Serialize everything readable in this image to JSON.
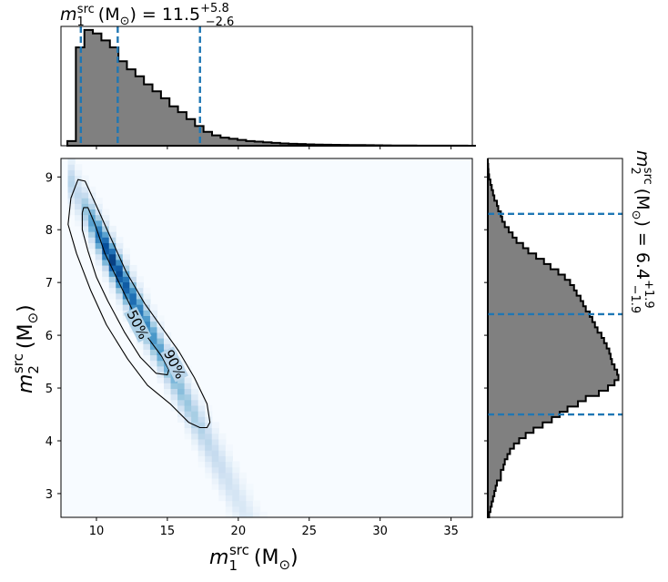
{
  "chart_data": {
    "type": "corner-plot",
    "top_title": {
      "base": "m",
      "sub": "1",
      "sup": "src",
      "unit": "(M",
      "unit_sub": "⊙",
      "unit_end": ")",
      "eq": "=",
      "value": "11.5",
      "plus": "+5.8",
      "minus": "−2.6"
    },
    "right_title": {
      "base": "m",
      "sub": "2",
      "sup": "src",
      "unit": "(M",
      "unit_sub": "⊙",
      "unit_end": ")",
      "eq": "=",
      "value": "6.4",
      "plus": "+1.9",
      "minus": "−1.9"
    },
    "xlabel": {
      "base": "m",
      "sub": "1",
      "sup": "src",
      "unit": "(M",
      "unit_sub": "⊙",
      "unit_end": ")"
    },
    "ylabel": {
      "base": "m",
      "sub": "2",
      "sup": "src",
      "unit": "(M",
      "unit_sub": "⊙",
      "unit_end": ")"
    },
    "xlim": [
      7.5,
      36.5
    ],
    "ylim": [
      2.55,
      9.35
    ],
    "xticks": [
      "10",
      "15",
      "20",
      "25",
      "30",
      "35"
    ],
    "xtick_values": [
      10,
      15,
      20,
      25,
      30,
      35
    ],
    "yticks": [
      "3",
      "4",
      "5",
      "6",
      "7",
      "8",
      "9"
    ],
    "ytick_values": [
      3,
      4,
      5,
      6,
      7,
      8,
      9
    ],
    "colormap": "Blues",
    "hist_fill": "#808080",
    "quantile_color": "#1f77b4",
    "m1_quantiles": [
      8.9,
      11.5,
      17.3
    ],
    "m2_quantiles": [
      4.5,
      6.4,
      8.3
    ],
    "m1_hist": {
      "edges_start": 7.95,
      "bin_width": 0.6,
      "counts": [
        0.04,
        0.85,
        1.0,
        0.97,
        0.91,
        0.85,
        0.73,
        0.66,
        0.6,
        0.53,
        0.47,
        0.41,
        0.34,
        0.29,
        0.23,
        0.17,
        0.12,
        0.09,
        0.07,
        0.06,
        0.05,
        0.04,
        0.035,
        0.03,
        0.025,
        0.02,
        0.017,
        0.015,
        0.012,
        0.01,
        0.009,
        0.008,
        0.007,
        0.006,
        0.006,
        0.005,
        0.004,
        0.003,
        0.002,
        0.002,
        0.0015,
        0.001,
        0.001,
        0.001,
        0.0005,
        0.0005,
        0.0005,
        0.0
      ]
    },
    "m2_hist": {
      "edges_start": 2.55,
      "bin_width": 0.1,
      "counts": [
        0.01,
        0.02,
        0.03,
        0.04,
        0.05,
        0.06,
        0.07,
        0.1,
        0.1,
        0.12,
        0.13,
        0.15,
        0.17,
        0.2,
        0.24,
        0.29,
        0.35,
        0.42,
        0.49,
        0.55,
        0.61,
        0.69,
        0.75,
        0.85,
        0.92,
        0.97,
        1.0,
        0.99,
        0.97,
        0.95,
        0.94,
        0.93,
        0.91,
        0.89,
        0.87,
        0.84,
        0.82,
        0.8,
        0.78,
        0.75,
        0.73,
        0.71,
        0.68,
        0.66,
        0.63,
        0.59,
        0.54,
        0.48,
        0.43,
        0.37,
        0.31,
        0.27,
        0.22,
        0.19,
        0.16,
        0.13,
        0.11,
        0.1,
        0.08,
        0.07,
        0.05,
        0.04,
        0.03,
        0.02,
        0.01,
        0.005,
        0.003,
        0.0
      ]
    },
    "density": {
      "ridge_slope": -0.51,
      "ridge_anchor": [
        10.0,
        8.0
      ],
      "cross_sigma": 0.25,
      "along_peak": 11.2,
      "along_sigma_low": 1.4,
      "along_sigma_high": 2.6,
      "along_min": 8.6,
      "along_tail_scale": 7.5
    },
    "contours": [
      {
        "label": "50%",
        "points": [
          [
            9.0,
            8.32
          ],
          [
            9.1,
            8.42
          ],
          [
            9.4,
            8.42
          ],
          [
            9.9,
            8.1
          ],
          [
            10.6,
            7.55
          ],
          [
            11.5,
            7.05
          ],
          [
            12.5,
            6.5
          ],
          [
            13.5,
            6.0
          ],
          [
            14.6,
            5.6
          ],
          [
            15.1,
            5.35
          ],
          [
            15.0,
            5.25
          ],
          [
            14.2,
            5.28
          ],
          [
            13.1,
            5.58
          ],
          [
            12.0,
            6.05
          ],
          [
            10.8,
            6.65
          ],
          [
            10.0,
            7.1
          ],
          [
            9.4,
            7.6
          ],
          [
            9.0,
            8.0
          ],
          [
            9.0,
            8.32
          ]
        ],
        "label_at": [
          12.9,
          6.2
        ],
        "label_angle": 63
      },
      {
        "label": "90%",
        "points": [
          [
            8.2,
            8.6
          ],
          [
            8.7,
            8.95
          ],
          [
            9.2,
            8.92
          ],
          [
            10.0,
            8.45
          ],
          [
            11.0,
            7.85
          ],
          [
            12.1,
            7.2
          ],
          [
            13.4,
            6.6
          ],
          [
            14.6,
            6.15
          ],
          [
            15.8,
            5.7
          ],
          [
            16.9,
            5.2
          ],
          [
            17.8,
            4.7
          ],
          [
            18.0,
            4.35
          ],
          [
            17.8,
            4.25
          ],
          [
            17.3,
            4.25
          ],
          [
            16.5,
            4.35
          ],
          [
            15.2,
            4.7
          ],
          [
            13.6,
            5.05
          ],
          [
            12.2,
            5.55
          ],
          [
            10.7,
            6.2
          ],
          [
            9.6,
            6.85
          ],
          [
            8.6,
            7.55
          ],
          [
            8.0,
            8.1
          ],
          [
            8.2,
            8.6
          ]
        ],
        "label_at": [
          15.5,
          5.45
        ],
        "label_angle": 63
      }
    ]
  }
}
